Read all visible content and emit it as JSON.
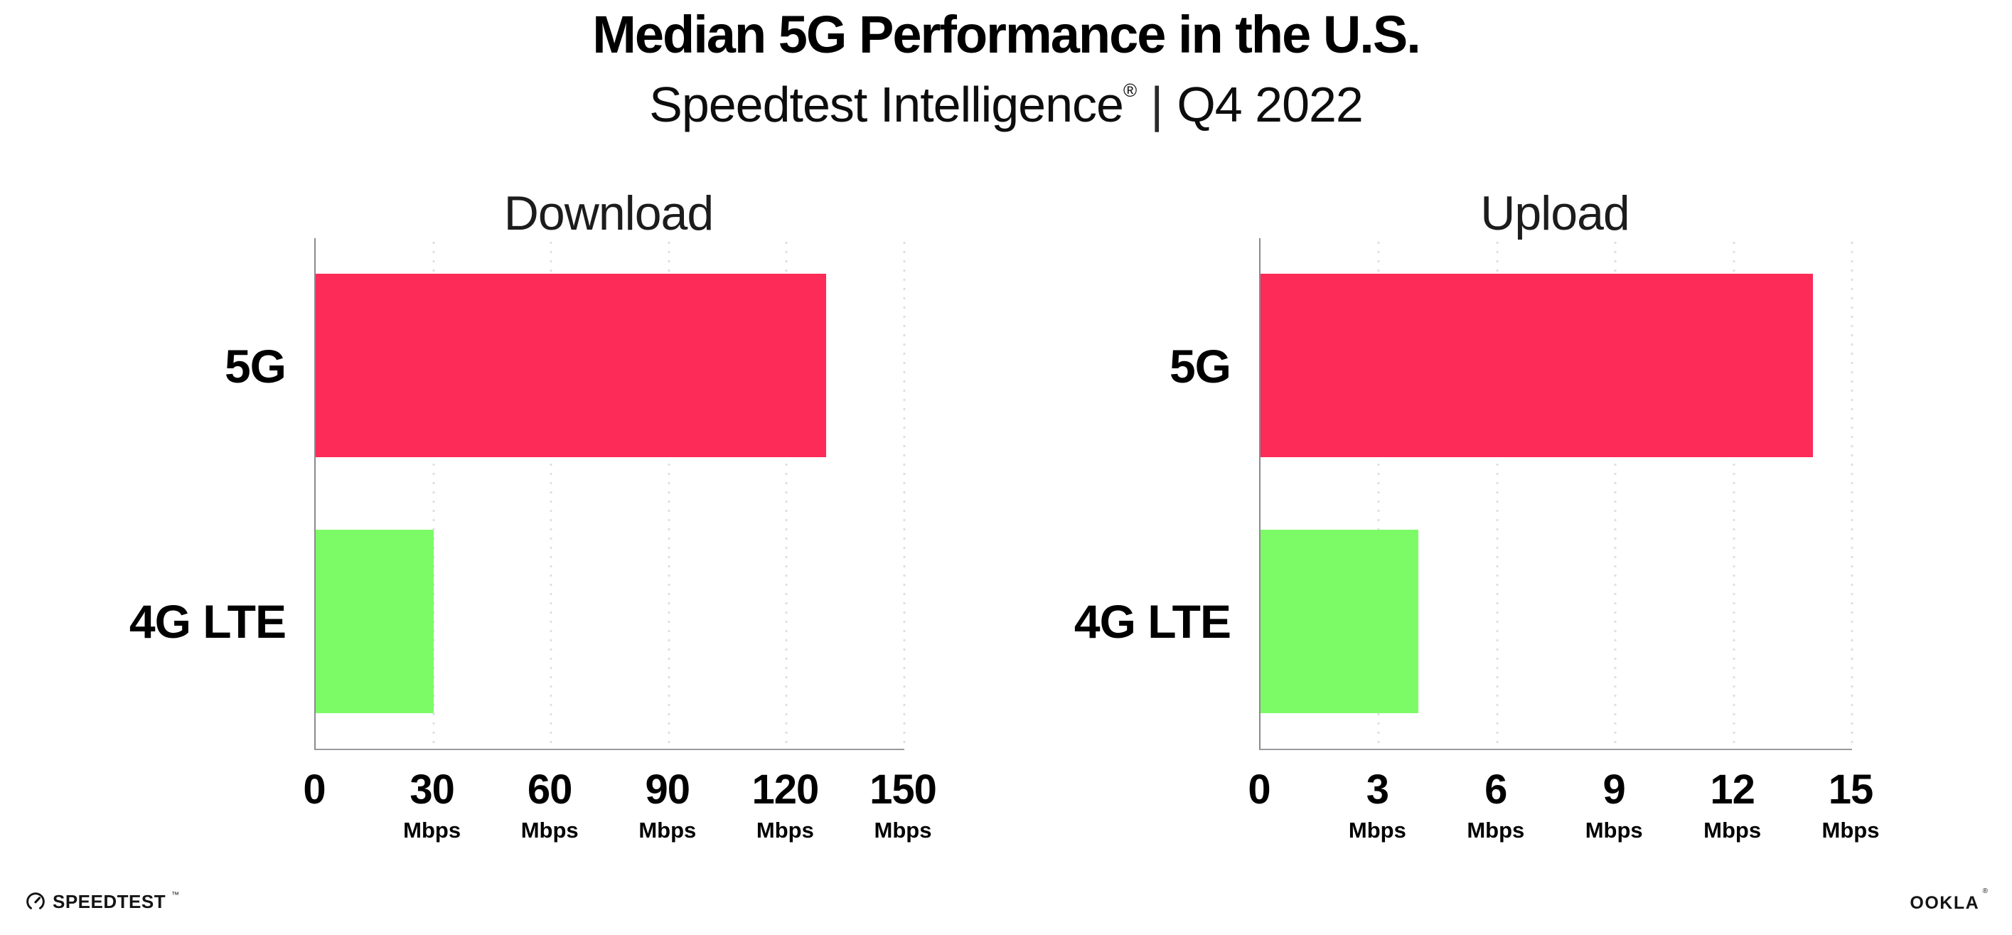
{
  "header": {
    "title": "Median 5G Performance in the U.S.",
    "subtitle": {
      "brand": "Speedtest Intelligence",
      "registered": "®",
      "divider": "|",
      "period": "Q4 2022"
    }
  },
  "colors": {
    "bar_5g": "#fc2b57",
    "bar_4g_lte": "#7dfb67",
    "axis_line": "#9a9a9f",
    "grid_dots": "#e0dee8",
    "text": "#000000",
    "background": "#ffffff"
  },
  "chart_data": [
    {
      "type": "bar",
      "orientation": "horizontal",
      "title": "Download",
      "categories": [
        "5G",
        "4G LTE"
      ],
      "values": [
        130,
        30
      ],
      "unit": "Mbps",
      "xlim": [
        0,
        150
      ],
      "xticks": [
        0,
        30,
        60,
        90,
        120,
        150
      ],
      "bar_colors": [
        "#fc2b57",
        "#7dfb67"
      ],
      "grid": "dotted-vertical",
      "legend": "none"
    },
    {
      "type": "bar",
      "orientation": "horizontal",
      "title": "Upload",
      "categories": [
        "5G",
        "4G LTE"
      ],
      "values": [
        14,
        4
      ],
      "unit": "Mbps",
      "xlim": [
        0,
        15
      ],
      "xticks": [
        0,
        3,
        6,
        9,
        12,
        15
      ],
      "bar_colors": [
        "#fc2b57",
        "#7dfb67"
      ],
      "grid": "dotted-vertical",
      "legend": "none"
    }
  ],
  "footer": {
    "speedtest_label": "SPEEDTEST",
    "speedtest_trademark": "™",
    "ookla_label": "OOKLA",
    "ookla_registered": "®"
  }
}
